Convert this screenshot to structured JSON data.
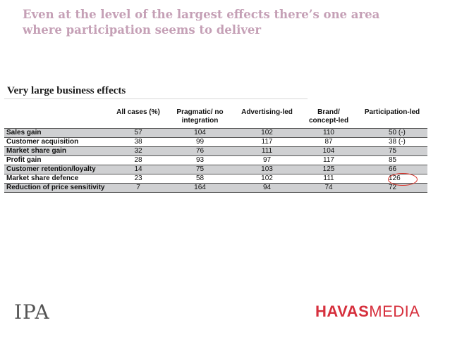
{
  "title": "Even at the level of the largest effects there’s one area where participation seems to deliver",
  "subtitle": "Very large business effects",
  "table": {
    "headers": [
      "",
      "All cases (%)",
      "Pragmatic/ no integration",
      "Advertising-led",
      "Brand/ concept-led",
      "Participation-led"
    ],
    "rows": [
      {
        "label": "Sales gain",
        "all": "57",
        "pragmatic": "104",
        "advertising": "102",
        "brand": "110",
        "participation": "50 (-)"
      },
      {
        "label": "Customer acquisition",
        "all": "38",
        "pragmatic": "99",
        "advertising": "117",
        "brand": "87",
        "participation": "38 (-)"
      },
      {
        "label": "Market share gain",
        "all": "32",
        "pragmatic": "76",
        "advertising": "111",
        "brand": "104",
        "participation": "75"
      },
      {
        "label": "Profit gain",
        "all": "28",
        "pragmatic": "93",
        "advertising": "97",
        "brand": "117",
        "participation": "85"
      },
      {
        "label": "Customer retention/loyalty",
        "all": "14",
        "pragmatic": "75",
        "advertising": "103",
        "brand": "125",
        "participation": "66"
      },
      {
        "label": "Market share defence",
        "all": "23",
        "pragmatic": "58",
        "advertising": "102",
        "brand": "111",
        "participation": "126"
      },
      {
        "label": "Reduction of price sensitivity",
        "all": "7",
        "pragmatic": "164",
        "advertising": "94",
        "brand": "74",
        "participation": "72"
      }
    ]
  },
  "logos": {
    "left": "IPA",
    "right_part1": "HAVAS",
    "right_part2": "MEDIA"
  },
  "colors": {
    "title": "#c5a0b6",
    "shade": "#cfd0d2",
    "highlight": "#d9342b",
    "brand": "#d6303d"
  }
}
